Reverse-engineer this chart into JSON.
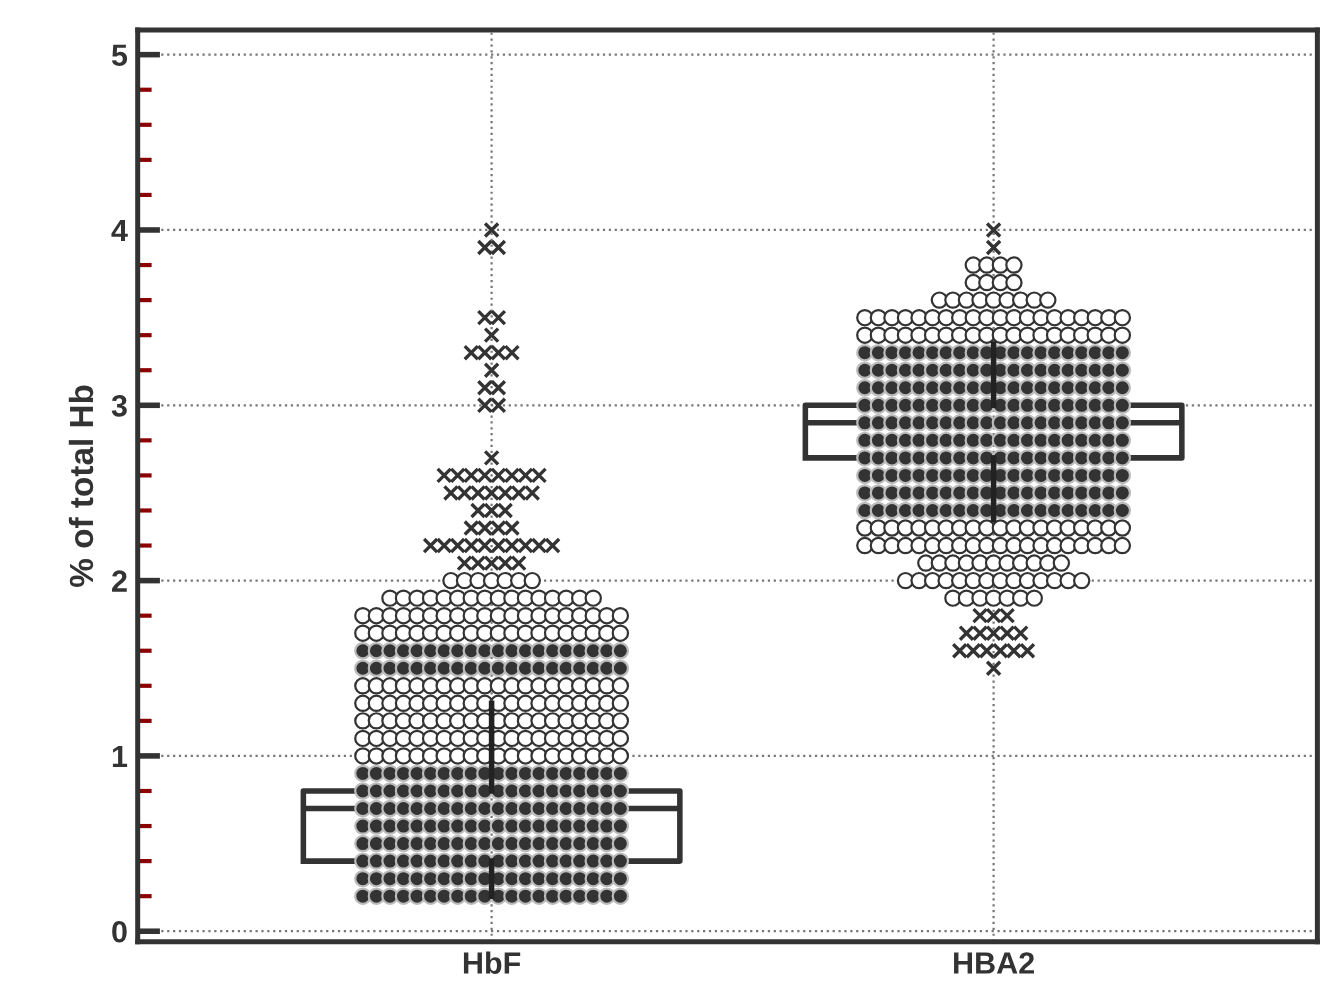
{
  "chart_data": {
    "type": "box",
    "ylabel": "% of total Hb",
    "categories": [
      "HbF",
      "HBA2"
    ],
    "ylim": [
      -0.06,
      5.14
    ],
    "yticks": [
      0,
      1,
      2,
      3,
      4,
      5
    ],
    "grid": true,
    "legend": false,
    "marker": "circle",
    "boxes": [
      {
        "low": 0.2,
        "q1": 0.4,
        "median": 0.7,
        "q3": 0.8,
        "high": 1.3,
        "outliers": [
          4.0,
          3.9,
          3.9,
          3.5,
          3.5,
          3.4,
          3.3,
          3.3,
          3.3,
          3.3,
          3.2,
          3.1,
          3.1,
          3.0,
          3.0,
          2.7,
          2.6,
          2.6,
          2.6,
          2.6,
          2.6,
          2.6,
          2.6,
          2.6,
          2.5,
          2.5,
          2.5,
          2.5,
          2.5,
          2.5,
          2.5,
          2.4,
          2.4,
          2.4,
          2.3,
          2.3,
          2.3,
          2.3,
          2.2,
          2.2,
          2.2,
          2.2,
          2.2,
          2.2,
          2.2,
          2.2,
          2.2,
          2.2,
          2.1,
          2.1,
          2.1,
          2.1,
          2.1
        ]
      },
      {
        "low": 2.35,
        "q1": 2.7,
        "median": 2.9,
        "q3": 3.0,
        "high": 3.35,
        "outliers": [
          4.0,
          3.9,
          1.8,
          1.8,
          1.8,
          1.7,
          1.7,
          1.7,
          1.7,
          1.7,
          1.6,
          1.6,
          1.6,
          1.6,
          1.6,
          1.6,
          1.5
        ]
      }
    ],
    "series": [
      {
        "type": "scatter",
        "color": "#ffffff",
        "x": [
          "HbF",
          "HbF",
          "HbF",
          "HbF",
          "HbF",
          "HbF",
          "HbF",
          "HbF",
          "HbF",
          "HbF",
          "HbF",
          "HbF",
          "HbF",
          "HbF",
          "HbF",
          "HbF",
          "HbF",
          "HbF",
          "HbF",
          "HbF",
          "HbF",
          "HbF",
          "HbF",
          "HbF",
          "HbF",
          "HbF",
          "HbF",
          "HbF",
          "HbF",
          "HbF",
          "HbF",
          "HbF",
          "HbF",
          "HbF",
          "HbF",
          "HbF",
          "HbF",
          "HbF",
          "HbF",
          "HbF",
          "HbF",
          "HbF",
          "HbF",
          "HbF",
          "HbF",
          "HbF",
          "HbF",
          "HbF",
          "HbF",
          "HbF",
          "HbF",
          "HbF",
          "HbF",
          "HbF",
          "HbF",
          "HbF",
          "HbF",
          "HbF",
          "HbF",
          "HbF",
          "HbF",
          "HbF",
          "HbF",
          "HbF",
          "HbF",
          "HbF",
          "HbF",
          "HbF",
          "HbF",
          "HbF",
          "HbF",
          "HbF",
          "HbF",
          "HbF",
          "HbF",
          "HbF",
          "HbF",
          "HbF",
          "HbF",
          "HbF",
          "HbF",
          "HbF",
          "HbF",
          "HbF",
          "HbF",
          "HbF",
          "HbF",
          "HbF",
          "HbF",
          "HbF",
          "HbF",
          "HbF",
          "HbF",
          "HbF",
          "HbF",
          "HbF",
          "HbF",
          "HbF",
          "HbF",
          "HbF",
          "HbF",
          "HbF",
          "HbF",
          "HbF",
          "HbF",
          "HbF",
          "HbF",
          "HbF",
          "HbF",
          "HbF",
          "HbF",
          "HbF",
          "HbF",
          "HbF",
          "HbF",
          "HbF",
          "HbF",
          "HbF",
          "HbF",
          "HbF",
          "HbF",
          "HbF",
          "HbF",
          "HbF",
          "HbF",
          "HbF",
          "HbF",
          "HbF",
          "HbF",
          "HbF",
          "HbF",
          "HbF",
          "HbF",
          "HbF",
          "HbF",
          "HbF",
          "HbF",
          "HbF",
          "HbF",
          "HbF",
          "HbF",
          "HbF",
          "HbF",
          "HbF",
          "HbF",
          "HbF",
          "HbF",
          "HbF",
          "HbF",
          "HbF",
          "HbF",
          "HbF",
          "HbF",
          "HbF",
          "HbF",
          "HbF",
          "HbF",
          "HbF",
          "HbF",
          "HbF",
          "HbF",
          "HbF",
          "HbF"
        ],
        "values": [
          2.0,
          2.0,
          2.0,
          2.0,
          2.0,
          2.0,
          2.0,
          1.9,
          1.9,
          1.9,
          1.9,
          1.9,
          1.9,
          1.9,
          1.9,
          1.9,
          1.9,
          1.9,
          1.9,
          1.9,
          1.9,
          1.9,
          1.9,
          1.8,
          1.8,
          1.8,
          1.8,
          1.8,
          1.8,
          1.8,
          1.8,
          1.8,
          1.8,
          1.8,
          1.8,
          1.8,
          1.8,
          1.8,
          1.8,
          1.8,
          1.8,
          1.8,
          1.8,
          1.7,
          1.7,
          1.7,
          1.7,
          1.7,
          1.7,
          1.7,
          1.7,
          1.7,
          1.7,
          1.7,
          1.7,
          1.7,
          1.7,
          1.7,
          1.7,
          1.7,
          1.7,
          1.7,
          1.7,
          1.4,
          1.4,
          1.4,
          1.4,
          1.4,
          1.4,
          1.4,
          1.4,
          1.4,
          1.4,
          1.4,
          1.4,
          1.4,
          1.4,
          1.4,
          1.4,
          1.4,
          1.4,
          1.4,
          1.4,
          1.3,
          1.3,
          1.3,
          1.3,
          1.3,
          1.3,
          1.3,
          1.3,
          1.3,
          1.3,
          1.3,
          1.3,
          1.3,
          1.3,
          1.3,
          1.3,
          1.3,
          1.3,
          1.3,
          1.3,
          1.2,
          1.2,
          1.2,
          1.2,
          1.2,
          1.2,
          1.2,
          1.2,
          1.2,
          1.2,
          1.2,
          1.2,
          1.2,
          1.2,
          1.2,
          1.2,
          1.2,
          1.2,
          1.2,
          1.2,
          1.1,
          1.1,
          1.1,
          1.1,
          1.1,
          1.1,
          1.1,
          1.1,
          1.1,
          1.1,
          1.1,
          1.1,
          1.1,
          1.1,
          1.1,
          1.1,
          1.1,
          1.1,
          1.1,
          1.1,
          1.0,
          1.0,
          1.0,
          1.0,
          1.0,
          1.0,
          1.0,
          1.0,
          1.0,
          1.0,
          1.0,
          1.0,
          1.0,
          1.0,
          1.0,
          1.0,
          1.0,
          1.0,
          1.0,
          1.0
        ]
      },
      {
        "type": "scatter",
        "color": "#333333",
        "x": [
          "HbF",
          "HbF",
          "HbF",
          "HbF",
          "HbF",
          "HbF",
          "HbF",
          "HbF",
          "HbF",
          "HbF",
          "HbF",
          "HbF",
          "HbF",
          "HbF",
          "HbF",
          "HbF",
          "HbF",
          "HbF",
          "HbF",
          "HbF",
          "HbF",
          "HbF",
          "HbF",
          "HbF",
          "HbF",
          "HbF",
          "HbF",
          "HbF",
          "HbF",
          "HbF",
          "HbF",
          "HbF",
          "HbF",
          "HbF",
          "HbF",
          "HbF",
          "HbF",
          "HbF",
          "HbF",
          "HbF",
          "HbF",
          "HbF",
          "HbF",
          "HbF",
          "HbF",
          "HbF",
          "HbF",
          "HbF",
          "HbF",
          "HbF",
          "HbF",
          "HbF",
          "HbF",
          "HbF",
          "HbF",
          "HbF",
          "HbF",
          "HbF",
          "HbF",
          "HbF",
          "HbF",
          "HbF",
          "HbF",
          "HbF",
          "HbF",
          "HbF",
          "HbF",
          "HbF",
          "HbF",
          "HbF",
          "HbF",
          "HbF",
          "HbF",
          "HbF",
          "HbF",
          "HbF",
          "HbF",
          "HbF",
          "HbF",
          "HbF",
          "HbF",
          "HbF",
          "HbF",
          "HbF",
          "HbF",
          "HbF",
          "HbF",
          "HbF",
          "HbF",
          "HbF",
          "HbF",
          "HbF",
          "HbF",
          "HbF",
          "HbF",
          "HbF",
          "HbF",
          "HbF",
          "HbF",
          "HbF",
          "HbF",
          "HbF",
          "HbF",
          "HbF",
          "HbF",
          "HbF",
          "HbF",
          "HbF",
          "HbF",
          "HbF",
          "HbF",
          "HbF",
          "HbF",
          "HbF",
          "HbF",
          "HbF",
          "HbF",
          "HbF",
          "HbF",
          "HbF",
          "HbF",
          "HbF",
          "HbF",
          "HbF",
          "HbF",
          "HbF",
          "HbF",
          "HbF",
          "HbF",
          "HbF",
          "HbF",
          "HbF",
          "HbF",
          "HbF",
          "HbF",
          "HbF",
          "HbF",
          "HbF",
          "HbF",
          "HbF",
          "HbF",
          "HbF",
          "HbF",
          "HbF",
          "HbF",
          "HbF",
          "HbF",
          "HbF",
          "HbF",
          "HbF",
          "HbF",
          "HbF",
          "HbF",
          "HbF",
          "HbF",
          "HbF",
          "HbF",
          "HbF",
          "HbF",
          "HbF",
          "HbF",
          "HbF",
          "HbF",
          "HbF",
          "HbF",
          "HbF",
          "HbF",
          "HbF",
          "HbF",
          "HbF",
          "HbF",
          "HbF",
          "HbF",
          "HbF",
          "HbF",
          "HbF",
          "HbF",
          "HbF",
          "HbF",
          "HbF",
          "HbF",
          "HbF",
          "HbF",
          "HbF",
          "HbF",
          "HbF",
          "HbF",
          "HbF",
          "HbF",
          "HbF",
          "HbF",
          "HbF",
          "HbF",
          "HbF",
          "HbF",
          "HbF",
          "HbF",
          "HbF",
          "HbF",
          "HbF"
        ],
        "values": [
          1.6,
          1.6,
          1.6,
          1.6,
          1.6,
          1.6,
          1.6,
          1.6,
          1.6,
          1.6,
          1.6,
          1.6,
          1.6,
          1.6,
          1.6,
          1.6,
          1.6,
          1.6,
          1.6,
          1.6,
          1.5,
          1.5,
          1.5,
          1.5,
          1.5,
          1.5,
          1.5,
          1.5,
          1.5,
          1.5,
          1.5,
          1.5,
          1.5,
          1.5,
          1.5,
          1.5,
          1.5,
          1.5,
          1.5,
          1.5,
          0.9,
          0.9,
          0.9,
          0.9,
          0.9,
          0.9,
          0.9,
          0.9,
          0.9,
          0.9,
          0.9,
          0.9,
          0.9,
          0.9,
          0.9,
          0.9,
          0.9,
          0.9,
          0.9,
          0.9,
          0.8,
          0.8,
          0.8,
          0.8,
          0.8,
          0.8,
          0.8,
          0.8,
          0.8,
          0.8,
          0.8,
          0.8,
          0.8,
          0.8,
          0.8,
          0.8,
          0.8,
          0.8,
          0.8,
          0.8,
          0.7,
          0.7,
          0.7,
          0.7,
          0.7,
          0.7,
          0.7,
          0.7,
          0.7,
          0.7,
          0.7,
          0.7,
          0.7,
          0.7,
          0.7,
          0.7,
          0.7,
          0.7,
          0.7,
          0.7,
          0.6,
          0.6,
          0.6,
          0.6,
          0.6,
          0.6,
          0.6,
          0.6,
          0.6,
          0.6,
          0.6,
          0.6,
          0.6,
          0.6,
          0.6,
          0.6,
          0.6,
          0.6,
          0.6,
          0.6,
          0.5,
          0.5,
          0.5,
          0.5,
          0.5,
          0.5,
          0.5,
          0.5,
          0.5,
          0.5,
          0.5,
          0.5,
          0.5,
          0.5,
          0.5,
          0.5,
          0.5,
          0.5,
          0.5,
          0.5,
          0.4,
          0.4,
          0.4,
          0.4,
          0.4,
          0.4,
          0.4,
          0.4,
          0.4,
          0.4,
          0.4,
          0.4,
          0.4,
          0.4,
          0.4,
          0.4,
          0.4,
          0.4,
          0.4,
          0.4,
          0.3,
          0.3,
          0.3,
          0.3,
          0.3,
          0.3,
          0.3,
          0.3,
          0.3,
          0.3,
          0.3,
          0.3,
          0.3,
          0.3,
          0.3,
          0.3,
          0.3,
          0.3,
          0.3,
          0.3,
          0.2,
          0.2,
          0.2,
          0.2,
          0.2,
          0.2,
          0.2,
          0.2,
          0.2,
          0.2,
          0.2,
          0.2,
          0.2,
          0.2,
          0.2,
          0.2,
          0.2,
          0.2,
          0.2,
          0.2
        ]
      },
      {
        "type": "scatter",
        "color": "#ffffff",
        "x": [
          "HBA2",
          "HBA2",
          "HBA2",
          "HBA2",
          "HBA2",
          "HBA2",
          "HBA2",
          "HBA2",
          "HBA2",
          "HBA2",
          "HBA2",
          "HBA2",
          "HBA2",
          "HBA2",
          "HBA2",
          "HBA2",
          "HBA2",
          "HBA2",
          "HBA2",
          "HBA2",
          "HBA2",
          "HBA2",
          "HBA2",
          "HBA2",
          "HBA2",
          "HBA2",
          "HBA2",
          "HBA2",
          "HBA2",
          "HBA2",
          "HBA2",
          "HBA2",
          "HBA2",
          "HBA2",
          "HBA2",
          "HBA2",
          "HBA2",
          "HBA2",
          "HBA2",
          "HBA2",
          "HBA2",
          "HBA2",
          "HBA2",
          "HBA2",
          "HBA2",
          "HBA2",
          "HBA2",
          "HBA2",
          "HBA2",
          "HBA2",
          "HBA2",
          "HBA2",
          "HBA2",
          "HBA2",
          "HBA2",
          "HBA2",
          "HBA2",
          "HBA2",
          "HBA2",
          "HBA2",
          "HBA2",
          "HBA2",
          "HBA2",
          "HBA2",
          "HBA2",
          "HBA2",
          "HBA2",
          "HBA2",
          "HBA2",
          "HBA2",
          "HBA2",
          "HBA2",
          "HBA2",
          "HBA2",
          "HBA2",
          "HBA2",
          "HBA2",
          "HBA2",
          "HBA2",
          "HBA2",
          "HBA2",
          "HBA2",
          "HBA2",
          "HBA2",
          "HBA2",
          "HBA2",
          "HBA2",
          "HBA2",
          "HBA2",
          "HBA2",
          "HBA2",
          "HBA2",
          "HBA2",
          "HBA2",
          "HBA2",
          "HBA2",
          "HBA2",
          "HBA2",
          "HBA2",
          "HBA2",
          "HBA2",
          "HBA2",
          "HBA2",
          "HBA2",
          "HBA2",
          "HBA2",
          "HBA2",
          "HBA2",
          "HBA2",
          "HBA2",
          "HBA2",
          "HBA2",
          "HBA2",
          "HBA2",
          "HBA2",
          "HBA2",
          "HBA2",
          "HBA2",
          "HBA2",
          "HBA2",
          "HBA2",
          "HBA2",
          "HBA2",
          "HBA2",
          "HBA2",
          "HBA2",
          "HBA2",
          "HBA2",
          "HBA2"
        ],
        "values": [
          3.8,
          3.8,
          3.8,
          3.8,
          3.7,
          3.7,
          3.7,
          3.7,
          3.6,
          3.6,
          3.6,
          3.6,
          3.6,
          3.6,
          3.6,
          3.6,
          3.6,
          3.5,
          3.5,
          3.5,
          3.5,
          3.5,
          3.5,
          3.5,
          3.5,
          3.5,
          3.5,
          3.5,
          3.5,
          3.5,
          3.5,
          3.5,
          3.5,
          3.5,
          3.5,
          3.5,
          3.5,
          3.4,
          3.4,
          3.4,
          3.4,
          3.4,
          3.4,
          3.4,
          3.4,
          3.4,
          3.4,
          3.4,
          3.4,
          3.4,
          3.4,
          3.4,
          3.4,
          3.4,
          3.4,
          3.4,
          3.4,
          2.3,
          2.3,
          2.3,
          2.3,
          2.3,
          2.3,
          2.3,
          2.3,
          2.3,
          2.3,
          2.3,
          2.3,
          2.3,
          2.3,
          2.3,
          2.3,
          2.3,
          2.3,
          2.3,
          2.3,
          2.2,
          2.2,
          2.2,
          2.2,
          2.2,
          2.2,
          2.2,
          2.2,
          2.2,
          2.2,
          2.2,
          2.2,
          2.2,
          2.2,
          2.2,
          2.2,
          2.2,
          2.2,
          2.2,
          2.2,
          2.1,
          2.1,
          2.1,
          2.1,
          2.1,
          2.1,
          2.1,
          2.1,
          2.1,
          2.1,
          2.1,
          2.0,
          2.0,
          2.0,
          2.0,
          2.0,
          2.0,
          2.0,
          2.0,
          2.0,
          2.0,
          2.0,
          2.0,
          2.0,
          2.0,
          1.9,
          1.9,
          1.9,
          1.9,
          1.9,
          1.9,
          1.9
        ]
      },
      {
        "type": "scatter",
        "color": "#333333",
        "x": [
          "HBA2",
          "HBA2",
          "HBA2",
          "HBA2",
          "HBA2",
          "HBA2",
          "HBA2",
          "HBA2",
          "HBA2",
          "HBA2",
          "HBA2",
          "HBA2",
          "HBA2",
          "HBA2",
          "HBA2",
          "HBA2",
          "HBA2",
          "HBA2",
          "HBA2",
          "HBA2",
          "HBA2",
          "HBA2",
          "HBA2",
          "HBA2",
          "HBA2",
          "HBA2",
          "HBA2",
          "HBA2",
          "HBA2",
          "HBA2",
          "HBA2",
          "HBA2",
          "HBA2",
          "HBA2",
          "HBA2",
          "HBA2",
          "HBA2",
          "HBA2",
          "HBA2",
          "HBA2",
          "HBA2",
          "HBA2",
          "HBA2",
          "HBA2",
          "HBA2",
          "HBA2",
          "HBA2",
          "HBA2",
          "HBA2",
          "HBA2",
          "HBA2",
          "HBA2",
          "HBA2",
          "HBA2",
          "HBA2",
          "HBA2",
          "HBA2",
          "HBA2",
          "HBA2",
          "HBA2",
          "HBA2",
          "HBA2",
          "HBA2",
          "HBA2",
          "HBA2",
          "HBA2",
          "HBA2",
          "HBA2",
          "HBA2",
          "HBA2",
          "HBA2",
          "HBA2",
          "HBA2",
          "HBA2",
          "HBA2",
          "HBA2",
          "HBA2",
          "HBA2",
          "HBA2",
          "HBA2",
          "HBA2",
          "HBA2",
          "HBA2",
          "HBA2",
          "HBA2",
          "HBA2",
          "HBA2",
          "HBA2",
          "HBA2",
          "HBA2",
          "HBA2",
          "HBA2",
          "HBA2",
          "HBA2",
          "HBA2",
          "HBA2",
          "HBA2",
          "HBA2",
          "HBA2",
          "HBA2",
          "HBA2",
          "HBA2",
          "HBA2",
          "HBA2",
          "HBA2",
          "HBA2",
          "HBA2",
          "HBA2",
          "HBA2",
          "HBA2",
          "HBA2",
          "HBA2",
          "HBA2",
          "HBA2",
          "HBA2",
          "HBA2",
          "HBA2",
          "HBA2",
          "HBA2",
          "HBA2",
          "HBA2",
          "HBA2",
          "HBA2",
          "HBA2",
          "HBA2",
          "HBA2",
          "HBA2",
          "HBA2",
          "HBA2",
          "HBA2",
          "HBA2",
          "HBA2",
          "HBA2",
          "HBA2",
          "HBA2",
          "HBA2",
          "HBA2",
          "HBA2",
          "HBA2",
          "HBA2",
          "HBA2",
          "HBA2",
          "HBA2",
          "HBA2",
          "HBA2",
          "HBA2",
          "HBA2",
          "HBA2",
          "HBA2",
          "HBA2",
          "HBA2",
          "HBA2",
          "HBA2",
          "HBA2",
          "HBA2",
          "HBA2",
          "HBA2",
          "HBA2",
          "HBA2",
          "HBA2",
          "HBA2",
          "HBA2",
          "HBA2",
          "HBA2",
          "HBA2",
          "HBA2",
          "HBA2",
          "HBA2",
          "HBA2",
          "HBA2",
          "HBA2",
          "HBA2",
          "HBA2",
          "HBA2",
          "HBA2",
          "HBA2",
          "HBA2",
          "HBA2",
          "HBA2",
          "HBA2",
          "HBA2",
          "HBA2",
          "HBA2",
          "HBA2",
          "HBA2",
          "HBA2",
          "HBA2",
          "HBA2",
          "HBA2",
          "HBA2",
          "HBA2",
          "HBA2",
          "HBA2",
          "HBA2",
          "HBA2",
          "HBA2",
          "HBA2",
          "HBA2",
          "HBA2",
          "HBA2"
        ],
        "values": [
          3.3,
          3.3,
          3.3,
          3.3,
          3.3,
          3.3,
          3.3,
          3.3,
          3.3,
          3.3,
          3.3,
          3.3,
          3.3,
          3.3,
          3.3,
          3.3,
          3.3,
          3.3,
          3.3,
          3.3,
          3.2,
          3.2,
          3.2,
          3.2,
          3.2,
          3.2,
          3.2,
          3.2,
          3.2,
          3.2,
          3.2,
          3.2,
          3.2,
          3.2,
          3.2,
          3.2,
          3.2,
          3.2,
          3.2,
          3.2,
          3.1,
          3.1,
          3.1,
          3.1,
          3.1,
          3.1,
          3.1,
          3.1,
          3.1,
          3.1,
          3.1,
          3.1,
          3.1,
          3.1,
          3.1,
          3.1,
          3.1,
          3.1,
          3.1,
          3.1,
          3.0,
          3.0,
          3.0,
          3.0,
          3.0,
          3.0,
          3.0,
          3.0,
          3.0,
          3.0,
          3.0,
          3.0,
          3.0,
          3.0,
          3.0,
          3.0,
          3.0,
          3.0,
          3.0,
          3.0,
          2.9,
          2.9,
          2.9,
          2.9,
          2.9,
          2.9,
          2.9,
          2.9,
          2.9,
          2.9,
          2.9,
          2.9,
          2.9,
          2.9,
          2.9,
          2.9,
          2.9,
          2.9,
          2.9,
          2.9,
          2.8,
          2.8,
          2.8,
          2.8,
          2.8,
          2.8,
          2.8,
          2.8,
          2.8,
          2.8,
          2.8,
          2.8,
          2.8,
          2.8,
          2.8,
          2.8,
          2.8,
          2.8,
          2.8,
          2.8,
          2.7,
          2.7,
          2.7,
          2.7,
          2.7,
          2.7,
          2.7,
          2.7,
          2.7,
          2.7,
          2.7,
          2.7,
          2.7,
          2.7,
          2.7,
          2.7,
          2.7,
          2.7,
          2.7,
          2.7,
          2.6,
          2.6,
          2.6,
          2.6,
          2.6,
          2.6,
          2.6,
          2.6,
          2.6,
          2.6,
          2.6,
          2.6,
          2.6,
          2.6,
          2.6,
          2.6,
          2.6,
          2.6,
          2.6,
          2.6,
          2.5,
          2.5,
          2.5,
          2.5,
          2.5,
          2.5,
          2.5,
          2.5,
          2.5,
          2.5,
          2.5,
          2.5,
          2.5,
          2.5,
          2.5,
          2.5,
          2.5,
          2.5,
          2.5,
          2.5,
          2.4,
          2.4,
          2.4,
          2.4,
          2.4,
          2.4,
          2.4,
          2.4,
          2.4,
          2.4,
          2.4,
          2.4,
          2.4,
          2.4,
          2.4,
          2.4,
          2.4,
          2.4,
          2.4,
          2.4
        ]
      }
    ]
  }
}
